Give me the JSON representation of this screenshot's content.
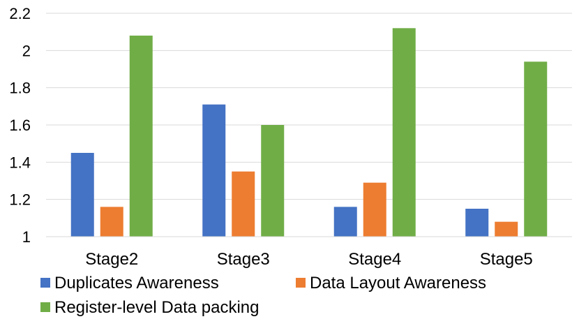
{
  "chart_data": {
    "type": "bar",
    "categories": [
      "Stage2",
      "Stage3",
      "Stage4",
      "Stage5"
    ],
    "series": [
      {
        "name": "Duplicates Awareness",
        "color": "#4472C4",
        "values": [
          1.45,
          1.71,
          1.16,
          1.15
        ]
      },
      {
        "name": "Data Layout Awareness",
        "color": "#ED7D31",
        "values": [
          1.16,
          1.35,
          1.29,
          1.08
        ]
      },
      {
        "name": "Register-level Data packing",
        "color": "#70AD47",
        "values": [
          2.08,
          1.6,
          2.12,
          1.94
        ]
      }
    ],
    "yticks": [
      "1",
      "1.2",
      "1.4",
      "1.6",
      "1.8",
      "2",
      "2.2"
    ],
    "ylim": [
      1,
      2.2
    ],
    "grid": true,
    "legend_position": "bottom"
  }
}
